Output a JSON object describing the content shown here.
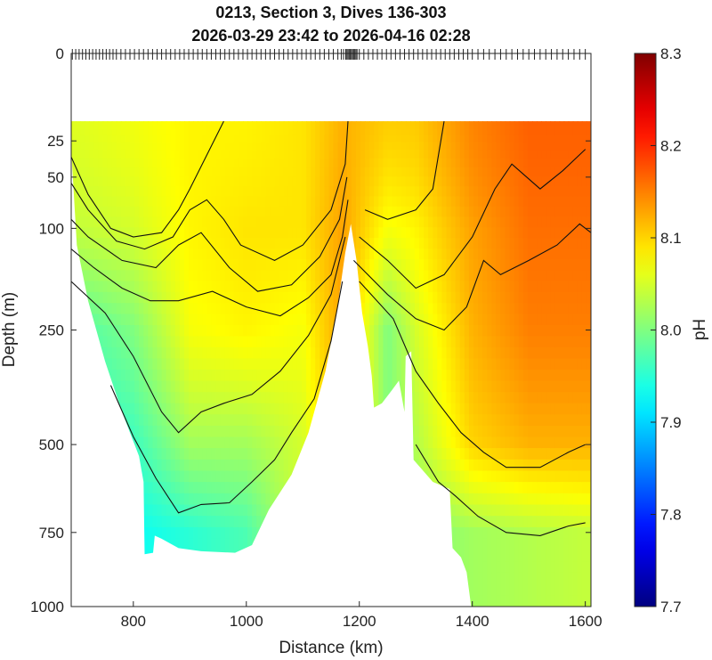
{
  "figure": {
    "title_line1": "0213, Section 3, Dives 136-303",
    "title_line2": "2026-03-29 23:42 to 2026-04-16 02:28"
  },
  "chart_data": {
    "type": "heatmap",
    "title": "0213, Section 3, Dives 136-303",
    "subtitle": "2026-03-29 23:42 to 2026-04-16 02:28",
    "xlabel": "Distance (km)",
    "ylabel": "Depth (m)",
    "xlim": [
      690,
      1610
    ],
    "ylim": [
      0,
      1000
    ],
    "yscale": "sqrt",
    "x_ticks": [
      800,
      1000,
      1200,
      1400,
      1600
    ],
    "y_ticks": [
      0,
      25,
      50,
      100,
      250,
      500,
      750,
      1000
    ],
    "colorbar": {
      "label": "pH",
      "range": [
        7.7,
        8.3
      ],
      "ticks": [
        7.7,
        7.8,
        7.9,
        8.0,
        8.1,
        8.2,
        8.3
      ],
      "colormap": "jet"
    },
    "data_top_depth": 15,
    "seafloor": [
      {
        "distance": 690,
        "depth": 30
      },
      {
        "distance": 700,
        "depth": 120
      },
      {
        "distance": 720,
        "depth": 200
      },
      {
        "distance": 750,
        "depth": 310
      },
      {
        "distance": 780,
        "depth": 420
      },
      {
        "distance": 810,
        "depth": 530
      },
      {
        "distance": 818,
        "depth": 600
      },
      {
        "distance": 820,
        "depth": 820
      },
      {
        "distance": 835,
        "depth": 815
      },
      {
        "distance": 838,
        "depth": 760
      },
      {
        "distance": 850,
        "depth": 770
      },
      {
        "distance": 880,
        "depth": 800
      },
      {
        "distance": 920,
        "depth": 810
      },
      {
        "distance": 980,
        "depth": 815
      },
      {
        "distance": 1010,
        "depth": 790
      },
      {
        "distance": 1040,
        "depth": 680
      },
      {
        "distance": 1080,
        "depth": 580
      },
      {
        "distance": 1110,
        "depth": 470
      },
      {
        "distance": 1140,
        "depth": 330
      },
      {
        "distance": 1160,
        "depth": 220
      },
      {
        "distance": 1175,
        "depth": 130
      },
      {
        "distance": 1185,
        "depth": 95
      },
      {
        "distance": 1195,
        "depth": 140
      },
      {
        "distance": 1205,
        "depth": 220
      },
      {
        "distance": 1215,
        "depth": 280
      },
      {
        "distance": 1222,
        "depth": 340
      },
      {
        "distance": 1226,
        "depth": 410
      },
      {
        "distance": 1240,
        "depth": 400
      },
      {
        "distance": 1258,
        "depth": 370
      },
      {
        "distance": 1270,
        "depth": 350
      },
      {
        "distance": 1280,
        "depth": 420
      },
      {
        "distance": 1282,
        "depth": 300
      },
      {
        "distance": 1292,
        "depth": 290
      },
      {
        "distance": 1296,
        "depth": 540
      },
      {
        "distance": 1330,
        "depth": 600
      },
      {
        "distance": 1360,
        "depth": 620
      },
      {
        "distance": 1365,
        "depth": 800
      },
      {
        "distance": 1380,
        "depth": 830
      },
      {
        "distance": 1390,
        "depth": 880
      },
      {
        "distance": 1398,
        "depth": 1000
      }
    ],
    "ph_along_section": [
      {
        "distance": 700,
        "surface": 8.06,
        "d100": 8.04,
        "d250": 7.97,
        "d500": 7.94,
        "d750": 7.93
      },
      {
        "distance": 800,
        "surface": 8.07,
        "d100": 8.05,
        "d250": 8.0,
        "d500": 7.96,
        "d750": 7.93
      },
      {
        "distance": 900,
        "surface": 8.08,
        "d100": 8.08,
        "d250": 8.07,
        "d500": 8.02,
        "d750": 7.95
      },
      {
        "distance": 1000,
        "surface": 8.08,
        "d100": 8.09,
        "d250": 8.08,
        "d500": 8.02,
        "d750": 7.97
      },
      {
        "distance": 1100,
        "surface": 8.09,
        "d100": 8.09,
        "d250": 8.07,
        "d500": 8.05
      },
      {
        "distance": 1170,
        "surface": 8.12,
        "d100": 8.13
      },
      {
        "distance": 1250,
        "surface": 8.11,
        "d100": 8.07,
        "d250": 8.0
      },
      {
        "distance": 1300,
        "surface": 8.11,
        "d100": 8.08,
        "d250": 8.05,
        "d500": 8.03,
        "d750": 8.0
      },
      {
        "distance": 1400,
        "surface": 8.15,
        "d100": 8.13,
        "d250": 8.12,
        "d500": 8.1,
        "d750": 8.02
      },
      {
        "distance": 1500,
        "surface": 8.17,
        "d100": 8.16,
        "d250": 8.15,
        "d500": 8.12,
        "d750": 8.03
      },
      {
        "distance": 1600,
        "surface": 8.17,
        "d100": 8.16,
        "d250": 8.15,
        "d500": 8.12,
        "d750": 8.04
      }
    ],
    "contour_depths": [
      [
        {
          "distance": 690,
          "depth": 35
        },
        {
          "distance": 720,
          "depth": 65
        },
        {
          "distance": 760,
          "depth": 100
        },
        {
          "distance": 800,
          "depth": 110
        },
        {
          "distance": 850,
          "depth": 105
        },
        {
          "distance": 880,
          "depth": 80
        },
        {
          "distance": 900,
          "depth": 60
        },
        {
          "distance": 960,
          "depth": 15
        }
      ],
      [
        {
          "distance": 690,
          "depth": 55
        },
        {
          "distance": 720,
          "depth": 80
        },
        {
          "distance": 770,
          "depth": 115
        },
        {
          "distance": 820,
          "depth": 125
        },
        {
          "distance": 870,
          "depth": 110
        },
        {
          "distance": 900,
          "depth": 80
        },
        {
          "distance": 930,
          "depth": 70
        },
        {
          "distance": 960,
          "depth": 90
        },
        {
          "distance": 990,
          "depth": 120
        },
        {
          "distance": 1050,
          "depth": 140
        },
        {
          "distance": 1100,
          "depth": 120
        },
        {
          "distance": 1150,
          "depth": 80
        },
        {
          "distance": 1175,
          "depth": 40
        },
        {
          "distance": 1180,
          "depth": 15
        }
      ],
      [
        {
          "distance": 690,
          "depth": 90
        },
        {
          "distance": 720,
          "depth": 110
        },
        {
          "distance": 780,
          "depth": 140
        },
        {
          "distance": 840,
          "depth": 150
        },
        {
          "distance": 880,
          "depth": 120
        },
        {
          "distance": 920,
          "depth": 105
        },
        {
          "distance": 970,
          "depth": 150
        },
        {
          "distance": 1020,
          "depth": 185
        },
        {
          "distance": 1080,
          "depth": 175
        },
        {
          "distance": 1130,
          "depth": 135
        },
        {
          "distance": 1165,
          "depth": 90
        },
        {
          "distance": 1178,
          "depth": 50
        }
      ],
      [
        {
          "distance": 690,
          "depth": 125
        },
        {
          "distance": 730,
          "depth": 150
        },
        {
          "distance": 780,
          "depth": 180
        },
        {
          "distance": 830,
          "depth": 200
        },
        {
          "distance": 880,
          "depth": 200
        },
        {
          "distance": 940,
          "depth": 185
        },
        {
          "distance": 1000,
          "depth": 210
        },
        {
          "distance": 1060,
          "depth": 225
        },
        {
          "distance": 1110,
          "depth": 195
        },
        {
          "distance": 1150,
          "depth": 160
        },
        {
          "distance": 1170,
          "depth": 110
        },
        {
          "distance": 1180,
          "depth": 70
        }
      ],
      [
        {
          "distance": 690,
          "depth": 170
        },
        {
          "distance": 750,
          "depth": 220
        },
        {
          "distance": 800,
          "depth": 300
        },
        {
          "distance": 850,
          "depth": 420
        },
        {
          "distance": 880,
          "depth": 470
        },
        {
          "distance": 920,
          "depth": 420
        },
        {
          "distance": 960,
          "depth": 400
        },
        {
          "distance": 1010,
          "depth": 380
        },
        {
          "distance": 1060,
          "depth": 330
        },
        {
          "distance": 1110,
          "depth": 260
        },
        {
          "distance": 1150,
          "depth": 190
        },
        {
          "distance": 1175,
          "depth": 110
        }
      ],
      [
        {
          "distance": 760,
          "depth": 360
        },
        {
          "distance": 800,
          "depth": 480
        },
        {
          "distance": 840,
          "depth": 590
        },
        {
          "distance": 880,
          "depth": 690
        },
        {
          "distance": 920,
          "depth": 665
        },
        {
          "distance": 970,
          "depth": 660
        },
        {
          "distance": 1010,
          "depth": 600
        },
        {
          "distance": 1050,
          "depth": 540
        },
        {
          "distance": 1080,
          "depth": 470
        },
        {
          "distance": 1120,
          "depth": 390
        },
        {
          "distance": 1150,
          "depth": 270
        },
        {
          "distance": 1170,
          "depth": 170
        }
      ],
      [
        {
          "distance": 1210,
          "depth": 80
        },
        {
          "distance": 1250,
          "depth": 90
        },
        {
          "distance": 1300,
          "depth": 80
        },
        {
          "distance": 1330,
          "depth": 60
        },
        {
          "distance": 1350,
          "depth": 15
        }
      ],
      [
        {
          "distance": 1200,
          "depth": 110
        },
        {
          "distance": 1250,
          "depth": 140
        },
        {
          "distance": 1300,
          "depth": 180
        },
        {
          "distance": 1350,
          "depth": 160
        },
        {
          "distance": 1400,
          "depth": 110
        },
        {
          "distance": 1440,
          "depth": 60
        },
        {
          "distance": 1470,
          "depth": 40
        },
        {
          "distance": 1520,
          "depth": 60
        },
        {
          "distance": 1560,
          "depth": 45
        },
        {
          "distance": 1600,
          "depth": 30
        }
      ],
      [
        {
          "distance": 1190,
          "depth": 140
        },
        {
          "distance": 1250,
          "depth": 190
        },
        {
          "distance": 1300,
          "depth": 230
        },
        {
          "distance": 1350,
          "depth": 250
        },
        {
          "distance": 1390,
          "depth": 210
        },
        {
          "distance": 1420,
          "depth": 140
        },
        {
          "distance": 1450,
          "depth": 160
        },
        {
          "distance": 1500,
          "depth": 140
        },
        {
          "distance": 1550,
          "depth": 120
        },
        {
          "distance": 1590,
          "depth": 95
        },
        {
          "distance": 1610,
          "depth": 105
        }
      ],
      [
        {
          "distance": 1200,
          "depth": 170
        },
        {
          "distance": 1260,
          "depth": 230
        },
        {
          "distance": 1300,
          "depth": 330
        },
        {
          "distance": 1340,
          "depth": 400
        },
        {
          "distance": 1380,
          "depth": 470
        },
        {
          "distance": 1420,
          "depth": 520
        },
        {
          "distance": 1460,
          "depth": 560
        },
        {
          "distance": 1520,
          "depth": 560
        },
        {
          "distance": 1570,
          "depth": 520
        },
        {
          "distance": 1600,
          "depth": 500
        }
      ],
      [
        {
          "distance": 1300,
          "depth": 500
        },
        {
          "distance": 1340,
          "depth": 600
        },
        {
          "distance": 1370,
          "depth": 640
        },
        {
          "distance": 1410,
          "depth": 700
        },
        {
          "distance": 1460,
          "depth": 750
        },
        {
          "distance": 1520,
          "depth": 760
        },
        {
          "distance": 1570,
          "depth": 730
        },
        {
          "distance": 1600,
          "depth": 720
        }
      ]
    ],
    "dive_distances": [
      692,
      698,
      704,
      710,
      716,
      722,
      728,
      734,
      740,
      746,
      752,
      758,
      764,
      770,
      778,
      786,
      794,
      802,
      810,
      818,
      826,
      834,
      842,
      850,
      858,
      866,
      874,
      882,
      890,
      898,
      906,
      914,
      922,
      930,
      938,
      946,
      954,
      962,
      970,
      978,
      986,
      994,
      1002,
      1010,
      1018,
      1026,
      1034,
      1042,
      1050,
      1058,
      1066,
      1074,
      1082,
      1090,
      1098,
      1106,
      1114,
      1122,
      1130,
      1138,
      1146,
      1154,
      1162,
      1168,
      1172,
      1176,
      1178,
      1180,
      1182,
      1184,
      1186,
      1188,
      1190,
      1192,
      1194,
      1196,
      1200,
      1208,
      1216,
      1224,
      1232,
      1240,
      1248,
      1256,
      1264,
      1272,
      1280,
      1288,
      1296,
      1304,
      1312,
      1320,
      1328,
      1336,
      1344,
      1352,
      1360,
      1368,
      1376,
      1384,
      1392,
      1400,
      1410,
      1420,
      1430,
      1440,
      1450,
      1460,
      1470,
      1480,
      1490,
      1500,
      1510,
      1520,
      1530,
      1540,
      1550,
      1560,
      1570,
      1580,
      1590,
      1600
    ]
  }
}
